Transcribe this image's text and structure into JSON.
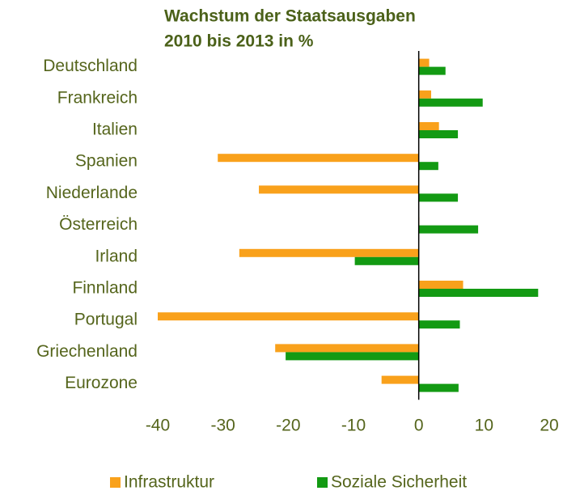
{
  "chart_data": {
    "type": "hbar",
    "title_lines": [
      "Wachstum der Staatsausgaben",
      "2010 bis 2013 in %"
    ],
    "categories": [
      "Deutschland",
      "Frankreich",
      "Italien",
      "Spanien",
      "Niederlande",
      "Österreich",
      "Irland",
      "Finnland",
      "Portugal",
      "Griechenland",
      "Eurozone"
    ],
    "series": [
      {
        "name": "Infrastruktur",
        "color": "#f9a11b",
        "values": [
          1.6,
          1.9,
          3.1,
          -30.8,
          -24.5,
          0.1,
          -27.5,
          6.8,
          -40,
          -22,
          -5.7
        ]
      },
      {
        "name": "Soziale Sicherheit",
        "color": "#139a13",
        "values": [
          4.1,
          9.8,
          6.0,
          3.0,
          6.0,
          9.1,
          -9.8,
          18.3,
          6.3,
          -20.4,
          6.1
        ]
      }
    ],
    "xlim": [
      -40,
      20
    ],
    "xticks": [
      -40,
      -30,
      -20,
      -10,
      0,
      10,
      20
    ],
    "grid": false
  }
}
